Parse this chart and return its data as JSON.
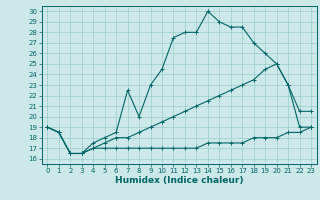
{
  "title": "",
  "xlabel": "Humidex (Indice chaleur)",
  "ylabel": "",
  "xlim": [
    -0.5,
    23.5
  ],
  "ylim": [
    15.5,
    30.5
  ],
  "xticks": [
    0,
    1,
    2,
    3,
    4,
    5,
    6,
    7,
    8,
    9,
    10,
    11,
    12,
    13,
    14,
    15,
    16,
    17,
    18,
    19,
    20,
    21,
    22,
    23
  ],
  "yticks": [
    16,
    17,
    18,
    19,
    20,
    21,
    22,
    23,
    24,
    25,
    26,
    27,
    28,
    29,
    30
  ],
  "bg_color": "#cce8e8",
  "line_color": "#006666",
  "grid_color": "#99cccc",
  "line1_x": [
    0,
    1,
    2,
    3,
    4,
    5,
    6,
    7,
    8,
    9,
    10,
    11,
    12,
    13,
    14,
    15,
    16,
    17,
    18,
    19,
    20,
    21,
    22,
    23
  ],
  "line1_y": [
    19.0,
    18.5,
    16.5,
    16.5,
    17.5,
    18.0,
    18.5,
    22.5,
    20.0,
    23.0,
    24.5,
    27.5,
    28.0,
    28.0,
    30.0,
    29.0,
    28.5,
    28.5,
    27.0,
    26.0,
    25.0,
    23.0,
    20.5,
    20.5
  ],
  "line2_x": [
    0,
    1,
    2,
    3,
    4,
    5,
    6,
    7,
    8,
    9,
    10,
    11,
    12,
    13,
    14,
    15,
    16,
    17,
    18,
    19,
    20,
    21,
    22,
    23
  ],
  "line2_y": [
    19.0,
    18.5,
    16.5,
    16.5,
    17.0,
    17.5,
    18.0,
    18.0,
    18.5,
    19.0,
    19.5,
    20.0,
    20.5,
    21.0,
    21.5,
    22.0,
    22.5,
    23.0,
    23.5,
    24.5,
    25.0,
    23.0,
    19.0,
    19.0
  ],
  "line3_x": [
    0,
    1,
    2,
    3,
    4,
    5,
    6,
    7,
    8,
    9,
    10,
    11,
    12,
    13,
    14,
    15,
    16,
    17,
    18,
    19,
    20,
    21,
    22,
    23
  ],
  "line3_y": [
    19.0,
    18.5,
    16.5,
    16.5,
    17.0,
    17.0,
    17.0,
    17.0,
    17.0,
    17.0,
    17.0,
    17.0,
    17.0,
    17.0,
    17.5,
    17.5,
    17.5,
    17.5,
    18.0,
    18.0,
    18.0,
    18.5,
    18.5,
    19.0
  ],
  "font_size_ticks": 5.0,
  "font_size_xlabel": 6.5
}
